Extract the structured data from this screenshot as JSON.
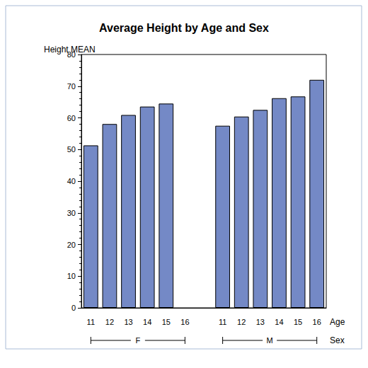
{
  "chart_data": {
    "type": "bar",
    "title": "Average Height by Age and Sex",
    "ylabel": "Height MEAN",
    "xlabel": "Age",
    "group_label": "Sex",
    "categories": [
      "11",
      "12",
      "13",
      "14",
      "15",
      "16"
    ],
    "series": [
      {
        "name": "F",
        "values": [
          51.3,
          58.05,
          60.9,
          63.55,
          64.5,
          null
        ]
      },
      {
        "name": "M",
        "values": [
          57.5,
          60.4,
          62.5,
          66.2,
          66.75,
          72
        ]
      }
    ],
    "color": "#7489c6",
    "ylim": [
      0,
      80
    ],
    "yticks": [
      0,
      10,
      20,
      30,
      40,
      50,
      60,
      70,
      80
    ],
    "grid": false
  }
}
